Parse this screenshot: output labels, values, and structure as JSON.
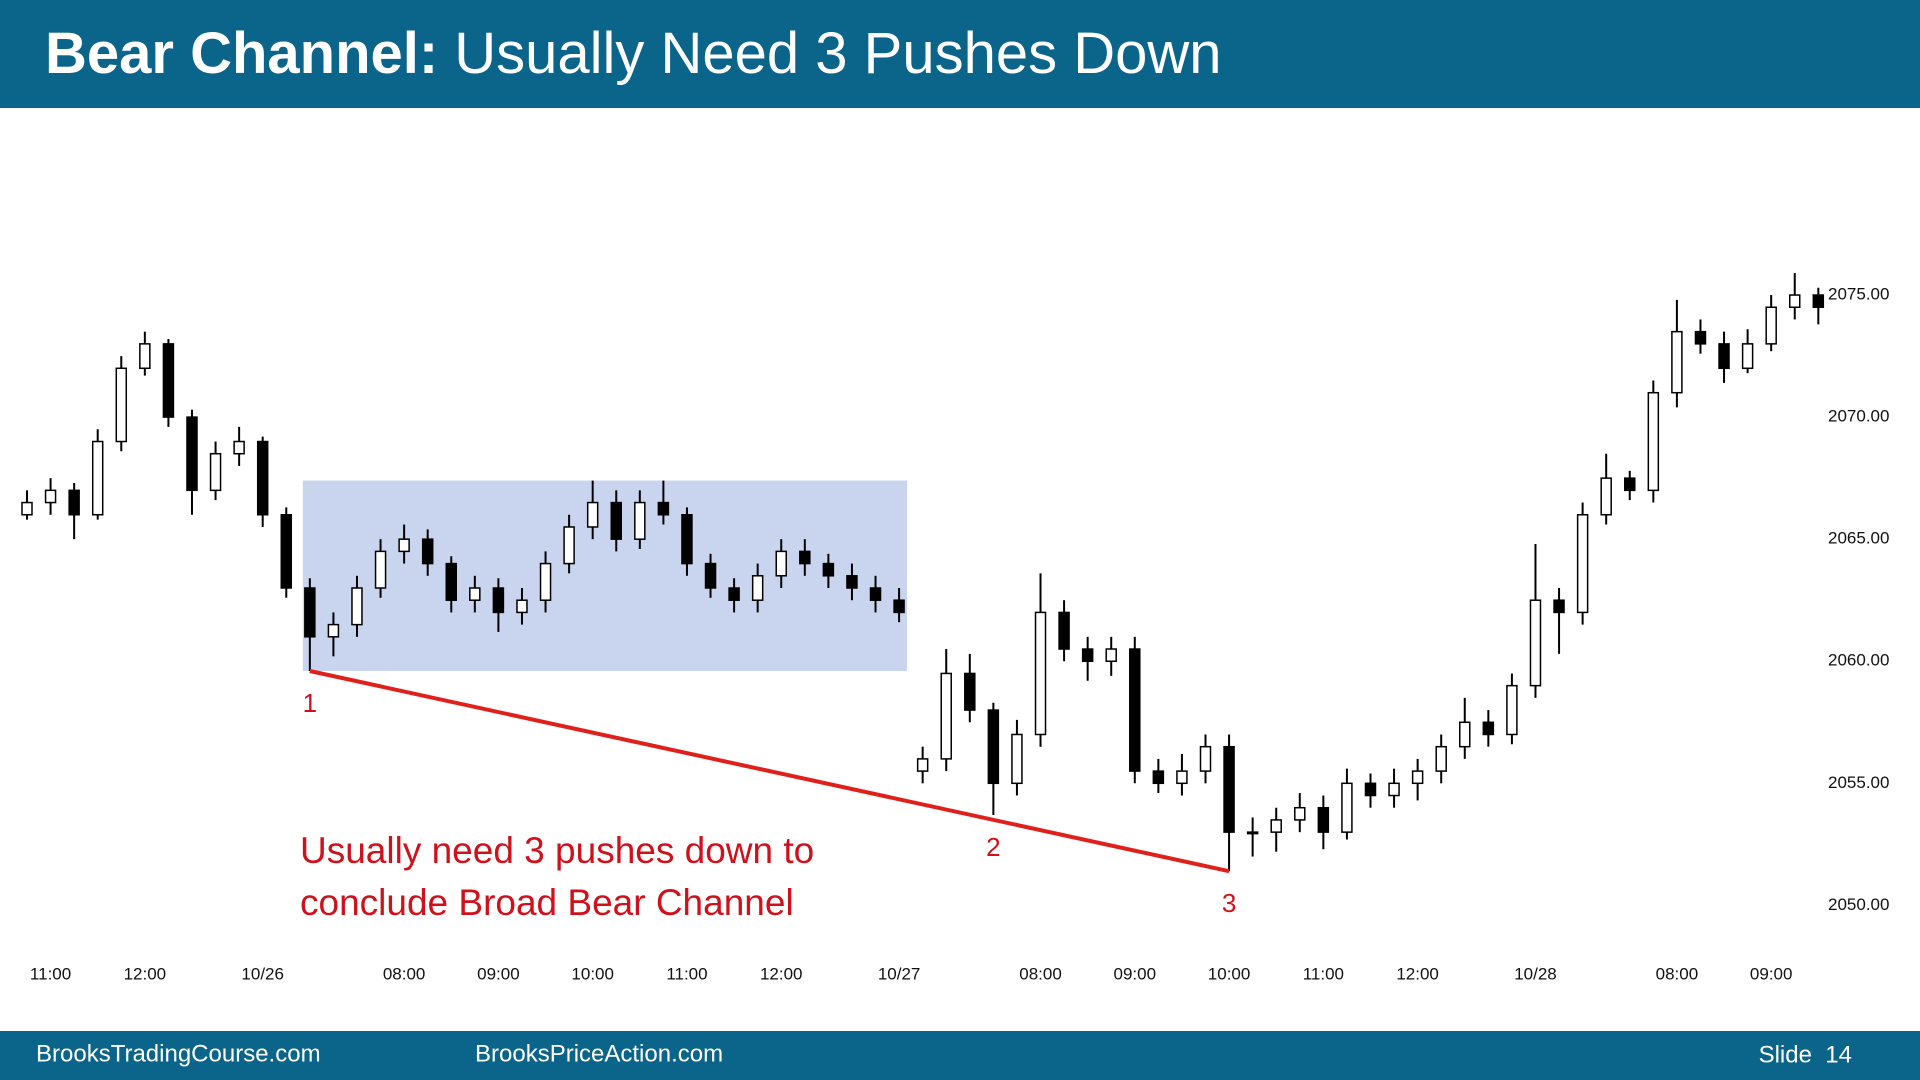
{
  "header": {
    "title_bold": "Bear Channel:",
    "title_rest": "Usually Need 3 Pushes Down"
  },
  "footer": {
    "left": "BrooksTradingCourse.com",
    "middle": "BrooksPriceAction.com",
    "slide": "Slide  14"
  },
  "chart_data": {
    "type": "candlestick",
    "categories": [
      null,
      "11:00",
      null,
      null,
      null,
      "12:00",
      null,
      null,
      null,
      null,
      "10/26",
      null,
      null,
      null,
      null,
      null,
      "08:00",
      null,
      null,
      null,
      "09:00",
      null,
      null,
      null,
      "10:00",
      null,
      null,
      null,
      "11:00",
      null,
      null,
      null,
      "12:00",
      null,
      null,
      null,
      null,
      "10/27",
      null,
      null,
      null,
      null,
      null,
      "08:00",
      null,
      null,
      null,
      "09:00",
      null,
      null,
      null,
      "10:00",
      null,
      null,
      null,
      "11:00",
      null,
      null,
      null,
      "12:00",
      null,
      null,
      null,
      null,
      "10/28",
      null,
      null,
      null,
      null,
      null,
      "08:00",
      null,
      null,
      null,
      "09:00",
      null,
      null
    ],
    "open": [
      2066,
      2066.5,
      2067,
      2066,
      2069,
      2072,
      2073,
      2070,
      2067,
      2068.5,
      2069,
      2066,
      2063,
      2061,
      2061.5,
      2063,
      2064.5,
      2065,
      2064,
      2062.5,
      2063,
      2062,
      2062.5,
      2064,
      2065.5,
      2066.5,
      2065,
      2066.5,
      2066,
      2064,
      2063,
      2062.5,
      2063.5,
      2064.5,
      2064,
      2063.5,
      2063,
      2062.5,
      2055.5,
      2056,
      2059.5,
      2058,
      2055,
      2057,
      2062,
      2060.5,
      2060,
      2060.5,
      2055.5,
      2055,
      2055.5,
      2056.5,
      2053,
      2053,
      2053.5,
      2054,
      2053,
      2055,
      2054.5,
      2055,
      2055.5,
      2056.5,
      2057.5,
      2057,
      2059,
      2062.5,
      2062,
      2066,
      2067.5,
      2067,
      2071,
      2073.5,
      2073,
      2072,
      2073,
      2074.5,
      2075
    ],
    "high": [
      2067,
      2067.5,
      2067.3,
      2069.5,
      2072.5,
      2073.5,
      2073.2,
      2070.3,
      2069,
      2069.6,
      2069.2,
      2066.3,
      2063.4,
      2062,
      2063.5,
      2065,
      2065.6,
      2065.4,
      2064.3,
      2063.5,
      2063.4,
      2063,
      2064.5,
      2066,
      2067.4,
      2067,
      2067,
      2067.4,
      2066.3,
      2064.4,
      2063.4,
      2064,
      2065,
      2065,
      2064.4,
      2064,
      2063.5,
      2063,
      2056.5,
      2060.5,
      2060.3,
      2058.3,
      2057.6,
      2063.6,
      2062.5,
      2061,
      2061,
      2061,
      2056,
      2056.2,
      2057,
      2057,
      2053.6,
      2054,
      2054.6,
      2054.5,
      2055.6,
      2055.4,
      2055.6,
      2056,
      2057,
      2058.5,
      2058,
      2059.5,
      2064.8,
      2063,
      2066.5,
      2068.5,
      2067.8,
      2071.5,
      2074.8,
      2074,
      2073.5,
      2073.6,
      2075,
      2075.9,
      2075.3
    ],
    "low": [
      2065.8,
      2066,
      2065,
      2065.8,
      2068.6,
      2071.7,
      2069.6,
      2066,
      2066.6,
      2068,
      2065.5,
      2062.6,
      2059.6,
      2060.2,
      2061,
      2062.6,
      2064,
      2063.5,
      2062,
      2062,
      2061.2,
      2061.5,
      2062,
      2063.6,
      2065,
      2064.5,
      2064.6,
      2065.6,
      2063.5,
      2062.6,
      2062,
      2062,
      2063,
      2063.5,
      2063,
      2062.5,
      2062,
      2061.6,
      2055,
      2055.5,
      2057.5,
      2053.7,
      2054.5,
      2056.5,
      2060,
      2059.2,
      2059.4,
      2055,
      2054.6,
      2054.5,
      2055,
      2051.4,
      2052,
      2052.2,
      2053,
      2052.3,
      2052.7,
      2054,
      2054,
      2054.3,
      2055,
      2056,
      2056.5,
      2056.6,
      2058.5,
      2060.3,
      2061.5,
      2065.6,
      2066.6,
      2066.5,
      2070.4,
      2072.6,
      2071.4,
      2071.8,
      2072.7,
      2074,
      2073.8
    ],
    "close": [
      2066.5,
      2067,
      2066,
      2069,
      2072,
      2073,
      2070,
      2067,
      2068.5,
      2069,
      2066,
      2063,
      2061,
      2061.5,
      2063,
      2064.5,
      2065,
      2064,
      2062.5,
      2063,
      2062,
      2062.5,
      2064,
      2065.5,
      2066.5,
      2065,
      2066.5,
      2066,
      2064,
      2063,
      2062.5,
      2063.5,
      2064.5,
      2064,
      2063.5,
      2063,
      2062.5,
      2062,
      2056,
      2059.5,
      2058,
      2055,
      2057,
      2062,
      2060.5,
      2060,
      2060.5,
      2055.5,
      2055,
      2055.5,
      2056.5,
      2053,
      2053,
      2053.5,
      2054,
      2053,
      2055,
      2054.5,
      2055,
      2055.5,
      2056.5,
      2057.5,
      2057,
      2059,
      2062.5,
      2062,
      2066,
      2067.5,
      2067,
      2071,
      2073.5,
      2073,
      2072,
      2073,
      2074.5,
      2075,
      2074.5
    ],
    "up_color": "#ffffff",
    "down_color": "#000000",
    "ylim": [
      2048.5,
      2077.5
    ],
    "yticks": [
      {
        "value": 2050,
        "label": "2050.00"
      },
      {
        "value": 2055,
        "label": "2055.00"
      },
      {
        "value": 2060,
        "label": "2060.00"
      },
      {
        "value": 2065,
        "label": "2065.00"
      },
      {
        "value": 2070,
        "label": "2070.00"
      },
      {
        "value": 2075,
        "label": "2075.00"
      }
    ],
    "grid": false,
    "box_color": "#c9d4ee",
    "trendline_color": "#e0201b",
    "pivot_labels": [
      "1",
      "2",
      "3"
    ],
    "annotation_lines": [
      "Usually need 3 pushes down to",
      "conclude Broad Bear Channel"
    ],
    "annotation_color": "#d0101a"
  }
}
